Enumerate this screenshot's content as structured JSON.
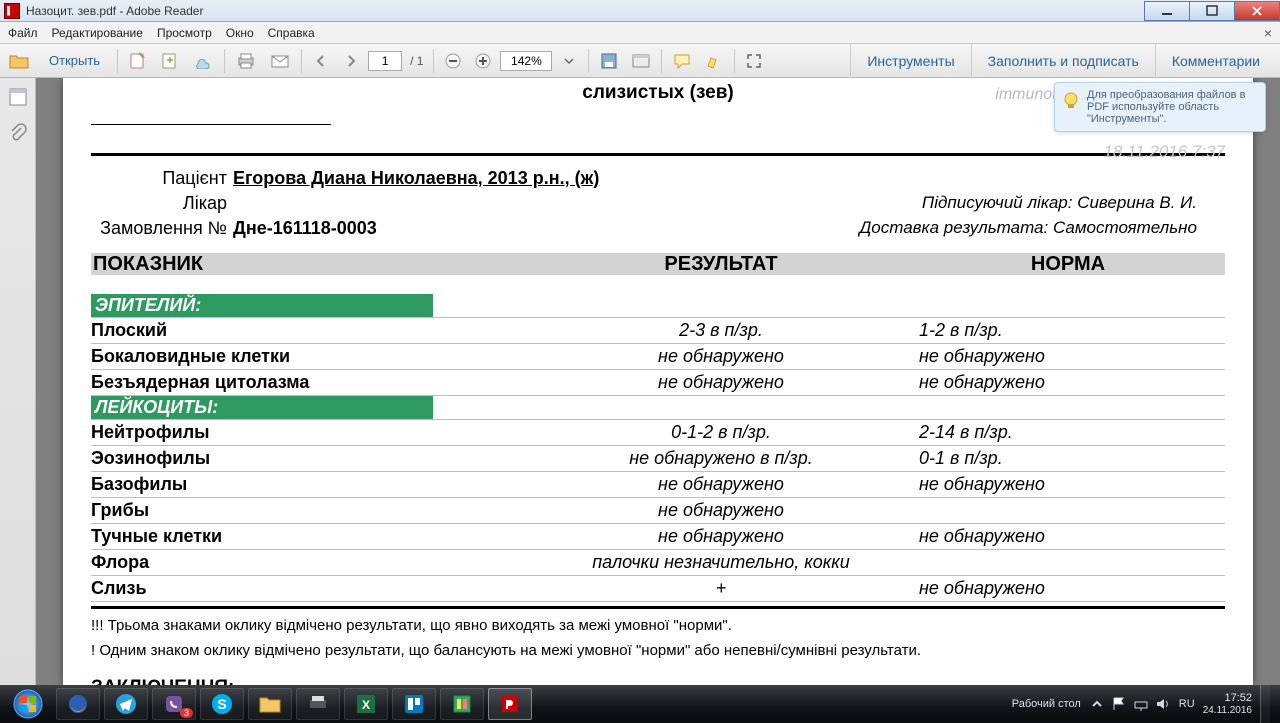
{
  "window": {
    "title": "Назоцит. зев.pdf - Adobe Reader"
  },
  "menu": {
    "file": "Файл",
    "edit": "Редактирование",
    "view": "Просмотр",
    "window": "Окно",
    "help": "Справка"
  },
  "toolbar": {
    "open": "Открыть",
    "page_current": "1",
    "page_total": "/ 1",
    "zoom": "142%",
    "tools": "Инструменты",
    "fill_sign": "Заполнить и подписать",
    "comments": "Комментарии"
  },
  "tooltip": {
    "text": "Для преобразования файлов в PDF используйте область \"Инструменты\"."
  },
  "doc": {
    "header_line": "слизистых (зев)",
    "email": "immunotest.medlab@yandex.ua",
    "datetime": "18.11.2016 7:37",
    "patient_label": "Пацієнт",
    "patient_value": "Егорова Диана Николаевна, 2013 р.н., (ж)",
    "doctor_label": "Лікар",
    "order_label": "Замовлення №",
    "order_value": "Дне-161118-0003",
    "signer": "Підписуючий лікар: Сиверина В. И.",
    "delivery": "Доставка результата: Самостоятельно",
    "col_indicator": "ПОКАЗНИК",
    "col_result": "РЕЗУЛЬТАТ",
    "col_norm": "НОРМА",
    "section1": "ЭПИТЕЛИЙ:",
    "section2": "ЛЕЙКОЦИТЫ:",
    "rows1": [
      {
        "n": "Плоский",
        "r": "2-3 в п/зр.",
        "m": "1-2 в п/зр."
      },
      {
        "n": "Бокаловидные клетки",
        "r": "не обнаружено",
        "m": "не обнаружено"
      },
      {
        "n": "Безъядерная цитолазма",
        "r": "не обнаружено",
        "m": "не обнаружено"
      }
    ],
    "rows2": [
      {
        "n": "Нейтрофилы",
        "r": "0-1-2 в п/зр.",
        "m": "2-14 в п/зр."
      },
      {
        "n": "Эозинофилы",
        "r": "не обнаружено в п/зр.",
        "m": "0-1 в п/зр."
      },
      {
        "n": "Базофилы",
        "r": "не обнаружено",
        "m": "не обнаружено"
      },
      {
        "n": "Грибы",
        "r": "не обнаружено",
        "m": ""
      },
      {
        "n": "Тучные клетки",
        "r": "не обнаружено",
        "m": "не обнаружено"
      },
      {
        "n": "Флора",
        "r": "палочки незначительно, кокки",
        "m": ""
      },
      {
        "n": "Слизь",
        "r": "+",
        "m": "не обнаружено"
      }
    ],
    "footnote1": "!!! Трьома знаками оклику відмічено результати, що явно виходять за межі умовної \"норми\".",
    "footnote2": "!   Одним знаком оклику відмічено результати, що балансують на межі умовної \"норми\" або непевні/сумнівні результати.",
    "conclusion": "ЗАКЛЮЧЕННЯ:"
  },
  "taskbar": {
    "desktop": "Рабочий стол",
    "lang": "RU",
    "time": "17:52",
    "date": "24.11.2016"
  }
}
